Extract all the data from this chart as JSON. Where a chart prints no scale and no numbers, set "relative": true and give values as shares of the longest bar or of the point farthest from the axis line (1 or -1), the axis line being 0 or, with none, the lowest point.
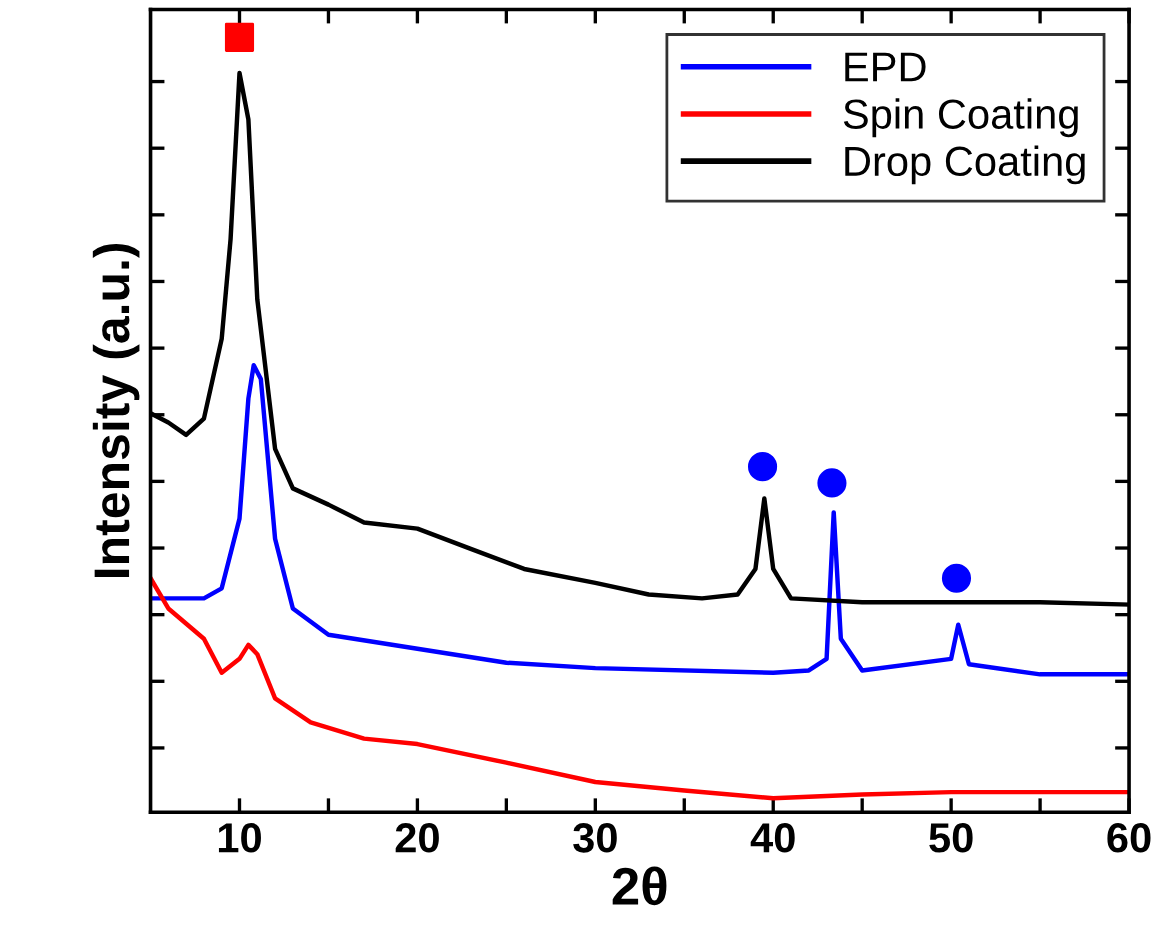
{
  "chart_data": {
    "type": "line",
    "xlabel": "2θ",
    "ylabel": "Intensity (a.u.)",
    "relative": true,
    "tick_labels": "x",
    "legend": "top right",
    "grid": false,
    "marker": "none",
    "line_style": "solid",
    "xlim": [
      5,
      60
    ],
    "xticks": [
      10,
      {
        "value": 15,
        "label": null
      },
      20,
      {
        "value": 25,
        "label": null
      },
      30,
      {
        "value": 35,
        "label": null
      },
      40,
      {
        "value": 45,
        "label": null
      },
      50,
      {
        "value": 55,
        "label": null
      },
      60
    ],
    "series": [
      {
        "name": "EPD",
        "color": "#0000ff",
        "x": [
          5,
          8,
          9,
          10,
          10.5,
          10.8,
          11.2,
          12,
          13,
          15,
          20,
          25,
          30,
          40,
          42,
          43,
          43.4,
          43.8,
          45,
          50,
          50.4,
          51,
          55,
          60
        ],
        "values": [
          0.276,
          0.276,
          0.289,
          0.379,
          0.534,
          0.577,
          0.559,
          0.353,
          0.263,
          0.229,
          0.211,
          0.193,
          0.186,
          0.18,
          0.183,
          0.198,
          0.387,
          0.224,
          0.183,
          0.198,
          0.242,
          0.191,
          0.178,
          0.178
        ]
      },
      {
        "name": "Spin Coating",
        "color": "#ff0000",
        "x": [
          5,
          6,
          8,
          9,
          10,
          10.5,
          11,
          12,
          14,
          17,
          20,
          25,
          30,
          35,
          40,
          45,
          50,
          55,
          60
        ],
        "values": [
          0.302,
          0.263,
          0.224,
          0.18,
          0.198,
          0.216,
          0.204,
          0.147,
          0.116,
          0.095,
          0.088,
          0.064,
          0.039,
          0.028,
          0.018,
          0.023,
          0.026,
          0.026,
          0.026
        ]
      },
      {
        "name": "Drop Coating",
        "color": "#000000",
        "x": [
          5,
          6,
          7,
          8,
          9,
          9.5,
          10,
          10.5,
          11,
          12,
          13,
          15,
          17,
          20,
          23,
          26,
          30,
          33,
          36,
          38,
          39,
          39.5,
          40,
          41,
          45,
          50,
          55,
          60
        ],
        "values": [
          0.515,
          0.503,
          0.487,
          0.508,
          0.611,
          0.74,
          0.954,
          0.894,
          0.662,
          0.469,
          0.418,
          0.397,
          0.374,
          0.366,
          0.34,
          0.314,
          0.296,
          0.281,
          0.276,
          0.281,
          0.314,
          0.405,
          0.314,
          0.276,
          0.271,
          0.271,
          0.271,
          0.268
        ]
      },
      {
        "type": "scatter",
        "marker": "square",
        "color": "#ff0000",
        "x": [
          10
        ],
        "values": [
          1.0
        ]
      },
      {
        "type": "scatter",
        "marker": "circle",
        "color": "#0000ff",
        "x": [
          39.4,
          43.3,
          50.3
        ],
        "values": [
          0.446,
          0.425,
          0.302
        ]
      }
    ]
  }
}
